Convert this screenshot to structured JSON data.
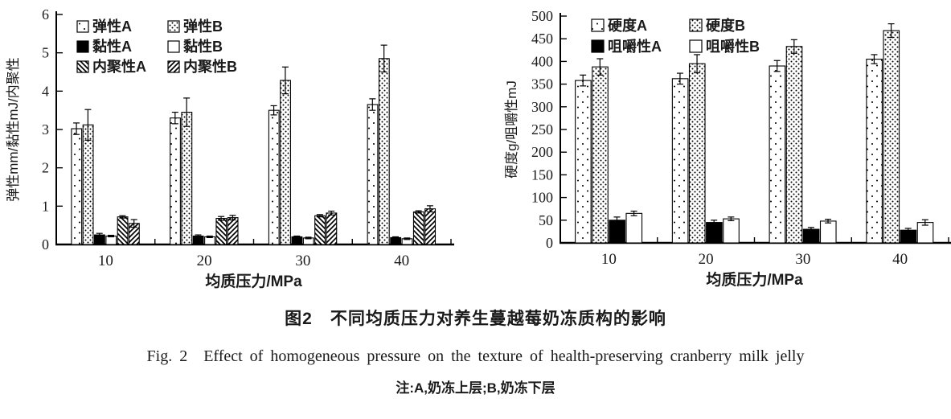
{
  "figure": {
    "caption_zh": "图2　不同均质压力对养生蔓越莓奶冻质构的影响",
    "caption_en": "Fig. 2　Effect of homogeneous pressure on the texture of health-preserving cranberry milk jelly",
    "note": "注:A,奶冻上层;B,奶冻下层"
  },
  "chart_data": [
    {
      "type": "bar",
      "title": "",
      "xlabel": "均质压力/MPa",
      "ylabel": "弹性mm/黏性mJ/内聚性",
      "categories": [
        "10",
        "20",
        "30",
        "40"
      ],
      "ylim": [
        0,
        6
      ],
      "ytick_step": 1,
      "grid": false,
      "legend_position": "top-left-inside",
      "legend_columns": 2,
      "bar_colors": {
        "outline": "#000000",
        "background": "#ffffff"
      },
      "series": [
        {
          "name": "弹性A",
          "pattern": "sparse-dots",
          "values": [
            3.02,
            3.3,
            3.5,
            3.65
          ],
          "errors": [
            0.15,
            0.15,
            0.12,
            0.15
          ]
        },
        {
          "name": "弹性B",
          "pattern": "dense-dots",
          "values": [
            3.12,
            3.45,
            4.28,
            4.85
          ],
          "errors": [
            0.4,
            0.37,
            0.35,
            0.35
          ]
        },
        {
          "name": "黏性A",
          "pattern": "solid-black",
          "values": [
            0.25,
            0.22,
            0.2,
            0.18
          ],
          "errors": [
            0.04,
            0.03,
            0.02,
            0.02
          ]
        },
        {
          "name": "黏性B",
          "pattern": "white",
          "values": [
            0.22,
            0.2,
            0.17,
            0.15
          ],
          "errors": [
            0.02,
            0.02,
            0.02,
            0.02
          ]
        },
        {
          "name": "内聚性A",
          "pattern": "hatch-back",
          "values": [
            0.72,
            0.68,
            0.75,
            0.85
          ],
          "errors": [
            0.03,
            0.05,
            0.03,
            0.03
          ]
        },
        {
          "name": "内聚性B",
          "pattern": "hatch-fwd",
          "values": [
            0.55,
            0.7,
            0.82,
            0.93
          ],
          "errors": [
            0.1,
            0.06,
            0.05,
            0.08
          ]
        }
      ]
    },
    {
      "type": "bar",
      "title": "",
      "xlabel": "均质压力/MPa",
      "ylabel": "硬度g/咀嚼性mJ",
      "categories": [
        "10",
        "20",
        "30",
        "40"
      ],
      "ylim": [
        0,
        500
      ],
      "ytick_step": 50,
      "grid": false,
      "legend_position": "top-left-inside",
      "legend_columns": 2,
      "bar_colors": {
        "outline": "#000000",
        "background": "#ffffff"
      },
      "series": [
        {
          "name": "硬度A",
          "pattern": "sparse-dots",
          "values": [
            358,
            362,
            390,
            405
          ],
          "errors": [
            12,
            12,
            12,
            10
          ]
        },
        {
          "name": "硬度B",
          "pattern": "dense-dots",
          "values": [
            388,
            395,
            433,
            468
          ],
          "errors": [
            18,
            20,
            15,
            15
          ]
        },
        {
          "name": "咀嚼性A",
          "pattern": "solid-black",
          "values": [
            50,
            45,
            30,
            28
          ],
          "errors": [
            7,
            5,
            4,
            4
          ]
        },
        {
          "name": "咀嚼性B",
          "pattern": "white",
          "values": [
            65,
            53,
            48,
            45
          ],
          "errors": [
            5,
            4,
            4,
            6
          ]
        }
      ]
    }
  ]
}
